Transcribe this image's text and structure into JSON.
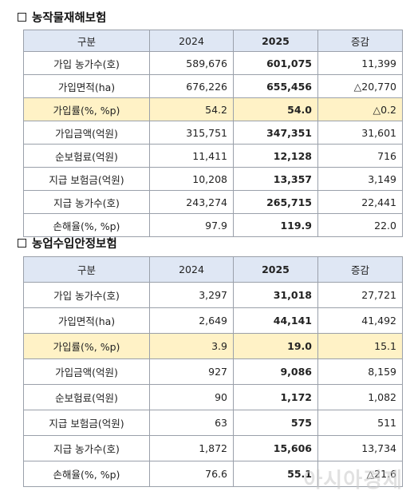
{
  "sections": [
    {
      "title": "농작물재해보험",
      "headers": [
        "구분",
        "2024",
        "2025",
        "증감"
      ],
      "rows": [
        {
          "label": "가입 농가수(호)",
          "v2024": "589,676",
          "v2025": "601,075",
          "diff": "11,399"
        },
        {
          "label": "가입면적(ha)",
          "v2024": "676,226",
          "v2025": "655,456",
          "diff": "△20,770"
        },
        {
          "label": "가입률(%, %p)",
          "v2024": "54.2",
          "v2025": "54.0",
          "diff": "△0.2",
          "highlight": true
        },
        {
          "label": "가입금액(억원)",
          "v2024": "315,751",
          "v2025": "347,351",
          "diff": "31,601"
        },
        {
          "label": "순보험료(억원)",
          "v2024": "11,411",
          "v2025": "12,128",
          "diff": "716"
        },
        {
          "label": "지급 보험금(억원)",
          "v2024": "10,208",
          "v2025": "13,357",
          "diff": "3,149"
        },
        {
          "label": "지급 농가수(호)",
          "v2024": "243,274",
          "v2025": "265,715",
          "diff": "22,441"
        },
        {
          "label": "손해율(%, %p)",
          "v2024": "97.9",
          "v2025": "119.9",
          "diff": "22.0"
        }
      ]
    },
    {
      "title": "농업수입안정보험",
      "headers": [
        "구분",
        "2024",
        "2025",
        "증감"
      ],
      "rows": [
        {
          "label": "가입 농가수(호)",
          "v2024": "3,297",
          "v2025": "31,018",
          "diff": "27,721"
        },
        {
          "label": "가입면적(ha)",
          "v2024": "2,649",
          "v2025": "44,141",
          "diff": "41,492"
        },
        {
          "label": "가입률(%, %p)",
          "v2024": "3.9",
          "v2025": "19.0",
          "diff": "15.1",
          "highlight": true
        },
        {
          "label": "가입금액(억원)",
          "v2024": "927",
          "v2025": "9,086",
          "diff": "8,159"
        },
        {
          "label": "순보험료(억원)",
          "v2024": "90",
          "v2025": "1,172",
          "diff": "1,082"
        },
        {
          "label": "지급 보험금(억원)",
          "v2024": "63",
          "v2025": "575",
          "diff": "511"
        },
        {
          "label": "지급 농가수(호)",
          "v2024": "1,872",
          "v2025": "15,606",
          "diff": "13,734"
        },
        {
          "label": "손해율(%, %p)",
          "v2024": "76.6",
          "v2025": "55.1",
          "diff": "△21.6"
        }
      ]
    }
  ],
  "watermark": "아시아경제",
  "colors": {
    "header_bg": "#dfe7f4",
    "highlight_bg": "#fff2c6",
    "border": "#9aa0aa"
  }
}
